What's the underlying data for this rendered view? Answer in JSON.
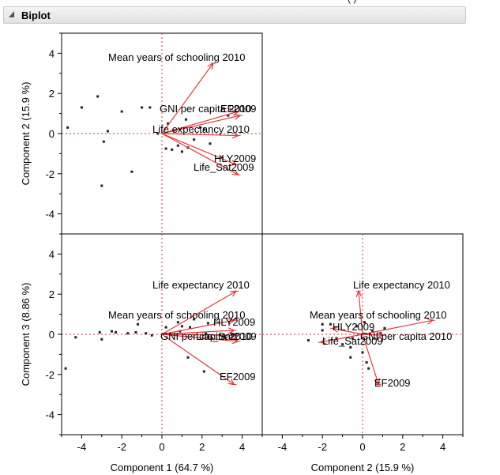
{
  "outline": {
    "title": "Biplot"
  },
  "top_text": "(          )",
  "chart_data": {
    "type": "biplot",
    "title": "Biplot",
    "variables": [
      "Mean years of schooling 2010",
      "GNI per capita 2010",
      "EF2009",
      "Life expectancy 2010",
      "HLY2009",
      "Life_Sat2009"
    ],
    "components": [
      {
        "name": "Component 1",
        "pct": "(64.7 %)"
      },
      {
        "name": "Component 2",
        "pct": "(15.9 %)"
      },
      {
        "name": "Component 3",
        "pct": "(8.86 %)"
      }
    ],
    "axis_ticks": {
      "component1": [
        "-4",
        "-2",
        "0",
        "2",
        "4"
      ],
      "component2": [
        "-4",
        "-2",
        "0",
        "2",
        "4"
      ],
      "component3": [
        "-4",
        "-2",
        "0",
        "2",
        "4"
      ]
    },
    "axis_ranges": {
      "component1": [
        -5,
        5
      ],
      "component2": [
        -5,
        5
      ],
      "component3": [
        -5,
        5
      ]
    },
    "panels": [
      {
        "id": "c1-vs-c2",
        "x_comp": 1,
        "y_comp": 2,
        "vectors": [
          {
            "label": "Mean years of schooling 2010",
            "x": 2.55,
            "y": 3.5
          },
          {
            "label": "GNI per capita 2010",
            "x": 3.8,
            "y": 1.1
          },
          {
            "label": "EF2009",
            "x": 3.9,
            "y": 0.9
          },
          {
            "label": "Life expectancy 2010",
            "x": 3.8,
            "y": -0.1
          },
          {
            "label": "HLY2009",
            "x": 3.7,
            "y": -1.55
          },
          {
            "label": "Life_Sat2009",
            "x": 3.8,
            "y": -2.05
          }
        ],
        "points": [
          [
            -4.7,
            0.3
          ],
          [
            -4,
            1.3
          ],
          [
            -3.2,
            1.85
          ],
          [
            -2.7,
            0.12
          ],
          [
            -2.9,
            -0.4
          ],
          [
            -2,
            1.1
          ],
          [
            -1.5,
            -1.9
          ],
          [
            -3,
            -2.6
          ],
          [
            -1,
            1.3
          ],
          [
            -0.6,
            1.3
          ],
          [
            0.3,
            0.5
          ],
          [
            0.5,
            -0.8
          ],
          [
            0.8,
            -0.6
          ],
          [
            1,
            -0.9
          ],
          [
            1.3,
            -0.7
          ],
          [
            1.6,
            -0.3
          ],
          [
            2.1,
            0.2
          ],
          [
            2.4,
            -0.5
          ],
          [
            3,
            -1.2
          ],
          [
            3.3,
            0.9
          ],
          [
            1.9,
            0.3
          ],
          [
            1.2,
            0.7
          ],
          [
            0.6,
            0.15
          ],
          [
            -0.2,
            0.0
          ],
          [
            0.2,
            -0.75
          ]
        ]
      },
      {
        "id": "c1-vs-c3",
        "x_comp": 1,
        "y_comp": 3,
        "vectors": [
          {
            "label": "Life expectancy 2010",
            "x": 3.7,
            "y": 2.15
          },
          {
            "label": "Mean years of schooling 2010",
            "x": 3.6,
            "y": 0.2
          },
          {
            "label": "HLY2009",
            "x": 3.6,
            "y": 0.7
          },
          {
            "label": "GNI per capita 2010",
            "x": 3.7,
            "y": -0.05
          },
          {
            "label": "Life_Sat2009",
            "x": 3.8,
            "y": -0.35
          },
          {
            "label": "EF2009",
            "x": 3.6,
            "y": -2.5
          }
        ],
        "points": [
          [
            -4.8,
            -1.7
          ],
          [
            -4.3,
            -0.15
          ],
          [
            -3.1,
            0.1
          ],
          [
            -3,
            -0.25
          ],
          [
            -2.5,
            0.15
          ],
          [
            -2.3,
            0.1
          ],
          [
            -1.7,
            0.05
          ],
          [
            -1.3,
            0.1
          ],
          [
            -1.2,
            0.5
          ],
          [
            -0.8,
            0.05
          ],
          [
            -0.5,
            -0.05
          ],
          [
            0.2,
            0.35
          ],
          [
            0.5,
            0.0
          ],
          [
            0.8,
            0.6
          ],
          [
            1,
            0.4
          ],
          [
            1.4,
            0.35
          ],
          [
            1.3,
            -1.15
          ],
          [
            1.6,
            0.75
          ],
          [
            2.2,
            0.0
          ],
          [
            2.5,
            -0.2
          ],
          [
            2.1,
            -1.85
          ],
          [
            2.3,
            0.55
          ],
          [
            3.1,
            -0.1
          ],
          [
            0.9,
            0.15
          ]
        ]
      },
      {
        "id": "c2-vs-c3",
        "x_comp": 2,
        "y_comp": 3,
        "vectors": [
          {
            "label": "Life expectancy 2010",
            "x": -0.2,
            "y": 2.15
          },
          {
            "label": "Mean years of schooling 2010",
            "x": 3.5,
            "y": 0.7
          },
          {
            "label": "HLY2009",
            "x": -1.5,
            "y": 0.3
          },
          {
            "label": "GNI per capita 2010",
            "x": 1.0,
            "y": -0.05
          },
          {
            "label": "Life_Sat2009",
            "x": -2.1,
            "y": -0.4
          },
          {
            "label": "EF2009",
            "x": 0.8,
            "y": -2.5
          }
        ],
        "points": [
          [
            -2.7,
            -0.3
          ],
          [
            -2,
            0.2
          ],
          [
            -2,
            0.5
          ],
          [
            -1.3,
            -0.2
          ],
          [
            -1,
            -0.5
          ],
          [
            -0.6,
            -0.65
          ],
          [
            -0.6,
            -1.15
          ],
          [
            -0.3,
            0.4
          ],
          [
            0.1,
            0.6
          ],
          [
            0.2,
            -1.4
          ],
          [
            0.3,
            -1.7
          ],
          [
            0.5,
            0.15
          ],
          [
            0.9,
            0.05
          ],
          [
            1.1,
            0.3
          ],
          [
            -0.5,
            -0.2
          ],
          [
            0.0,
            -0.9
          ],
          [
            -1.6,
            0.5
          ]
        ]
      }
    ]
  }
}
